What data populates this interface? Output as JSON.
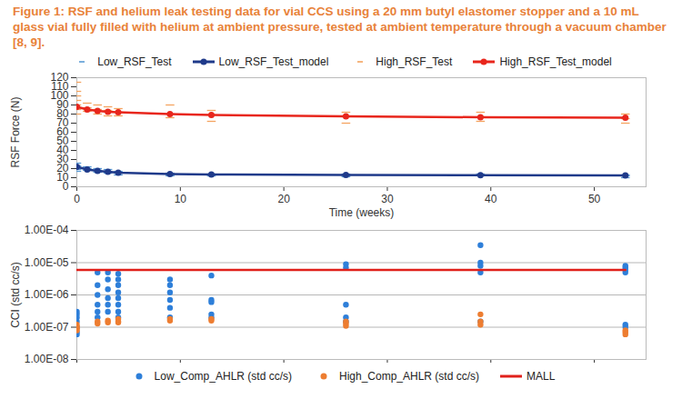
{
  "chart_data": [
    {
      "type": "scatter",
      "title": "Figure 1: RSF and helium leak testing data for vial CCS using a 20 mm butyl elastomer stopper and a 10 mL glass vial fully filled with helium at ambient pressure, tested at ambient temperature through a vacuum chamber [8, 9].",
      "x_label": "Time (weeks)",
      "y_label": "RSF Force (N)",
      "xlim": [
        0,
        55
      ],
      "xticks": [
        0,
        10,
        20,
        30,
        40,
        50
      ],
      "ylim": [
        0,
        120
      ],
      "yticks": [
        0,
        10,
        20,
        30,
        40,
        50,
        60,
        70,
        80,
        90,
        100,
        110,
        120
      ],
      "grid": false,
      "legend": "top",
      "series": [
        {
          "name": "Low_RSF_Test",
          "type": "scatter",
          "marker": "dash",
          "color": "#5b9bd5",
          "x": [
            0,
            0,
            0,
            0,
            0,
            1,
            1,
            1,
            2,
            2,
            2,
            3,
            3,
            3,
            4,
            4,
            4,
            9,
            9,
            9,
            13,
            13,
            26,
            26,
            26,
            39,
            39,
            53,
            53,
            53
          ],
          "values": [
            26,
            23,
            21,
            19,
            17,
            22,
            20,
            18,
            20,
            18,
            16,
            19,
            17,
            15,
            17,
            15,
            13,
            15,
            13,
            12,
            14,
            12,
            14,
            12,
            11,
            14,
            12,
            13,
            12,
            10
          ]
        },
        {
          "name": "Low_RSF_Test_model",
          "type": "line",
          "marker": "circle",
          "color": "#1f3a8a",
          "x": [
            0,
            1,
            2,
            3,
            4,
            9,
            13,
            26,
            39,
            53
          ],
          "values": [
            22,
            19,
            17.5,
            16.5,
            15.5,
            14,
            13.5,
            13,
            12.8,
            12.5
          ]
        },
        {
          "name": "High_RSF_Test",
          "type": "scatter",
          "marker": "dash",
          "color": "#f4a460",
          "x": [
            0,
            0,
            0,
            0,
            0,
            0,
            0,
            1,
            1,
            1,
            2,
            2,
            2,
            3,
            3,
            3,
            4,
            4,
            4,
            9,
            9,
            9,
            13,
            13,
            13,
            26,
            26,
            26,
            39,
            39,
            39,
            53,
            53,
            53
          ],
          "values": [
            115,
            105,
            100,
            95,
            90,
            85,
            80,
            92,
            87,
            83,
            90,
            85,
            80,
            88,
            84,
            78,
            86,
            82,
            78,
            90,
            80,
            76,
            84,
            79,
            72,
            82,
            77,
            70,
            82,
            77,
            72,
            80,
            75,
            70
          ]
        },
        {
          "name": "High_RSF_Test_model",
          "type": "line",
          "marker": "circle",
          "color": "#e8261c",
          "x": [
            0,
            1,
            2,
            3,
            4,
            9,
            13,
            26,
            39,
            53
          ],
          "values": [
            88,
            85,
            83.5,
            82.5,
            82,
            80,
            79,
            77.5,
            76.5,
            76
          ]
        }
      ]
    },
    {
      "type": "scatter",
      "y_label": "CCI (std cc/s)",
      "xlim": [
        0,
        55
      ],
      "xticks": [
        0,
        10,
        20,
        30,
        40,
        50
      ],
      "ylim": [
        1e-08,
        0.0001
      ],
      "yticks": [
        {
          "value": 1e-08,
          "label": "1.00E-08"
        },
        {
          "value": 1e-07,
          "label": "1.00E-07"
        },
        {
          "value": 1e-06,
          "label": "1.00E-06"
        },
        {
          "value": 1e-05,
          "label": "1.00E-05"
        },
        {
          "value": 0.0001,
          "label": "1.00E-04"
        }
      ],
      "log": "y",
      "grid": true,
      "tick_labels": "y",
      "legend": "bottom",
      "series": [
        {
          "name": "Low_Comp_AHLR (std cc/s)",
          "type": "scatter",
          "marker": "circle",
          "color": "#2e7fd9",
          "x": [
            0,
            0,
            0,
            0,
            0,
            0,
            0,
            2,
            2,
            2,
            2,
            2,
            2,
            3,
            3,
            3,
            3,
            3,
            3,
            4,
            4,
            4,
            4,
            4,
            4,
            4,
            4,
            9,
            9,
            9,
            9,
            9,
            9,
            13,
            13,
            13,
            13,
            13,
            26,
            26,
            26,
            26,
            26,
            39,
            39,
            39,
            39,
            39,
            53,
            53,
            53,
            53,
            53,
            53
          ],
          "values": [
            3e-07,
            2.5e-07,
            2e-07,
            1.5e-07,
            1e-07,
            7e-08,
            6e-08,
            5e-06,
            2e-06,
            1e-06,
            5e-07,
            3e-07,
            2e-07,
            5e-06,
            3e-06,
            1.5e-06,
            8e-07,
            5e-07,
            3e-07,
            4.5e-06,
            3e-06,
            2e-06,
            1.2e-06,
            8e-07,
            5e-07,
            3e-07,
            2e-07,
            3e-06,
            2e-06,
            1.2e-06,
            7e-07,
            4e-07,
            2e-07,
            4e-06,
            7e-07,
            6e-07,
            2.5e-07,
            2e-07,
            9e-06,
            7e-06,
            5e-07,
            2e-07,
            1.5e-07,
            3.5e-05,
            1e-05,
            8e-06,
            5e-06,
            1.5e-07,
            8e-06,
            7e-06,
            6e-06,
            5e-06,
            1.2e-07,
            1e-07
          ]
        },
        {
          "name": "High_Comp_AHLR (std cc/s)",
          "type": "scatter",
          "marker": "circle",
          "color": "#ed7d31",
          "x": [
            0,
            0,
            0,
            0,
            2,
            2,
            3,
            3,
            4,
            4,
            4,
            9,
            9,
            13,
            13,
            26,
            26,
            26,
            39,
            39,
            39,
            53,
            53,
            53
          ],
          "values": [
            1.2e-07,
            1e-07,
            9e-08,
            8e-08,
            1.5e-07,
            1.3e-07,
            1.6e-07,
            1.4e-07,
            1.8e-07,
            1.5e-07,
            1.4e-07,
            1.8e-07,
            1.6e-07,
            1.8e-07,
            1.6e-07,
            1.5e-07,
            1.3e-07,
            1.1e-07,
            2.5e-07,
            1.5e-07,
            1.2e-07,
            8e-08,
            7e-08,
            6e-08
          ]
        },
        {
          "name": "MALL",
          "type": "line",
          "marker": "none",
          "color": "#e0201b",
          "x": [
            0,
            53
          ],
          "values": [
            6e-06,
            6e-06
          ]
        }
      ]
    }
  ]
}
